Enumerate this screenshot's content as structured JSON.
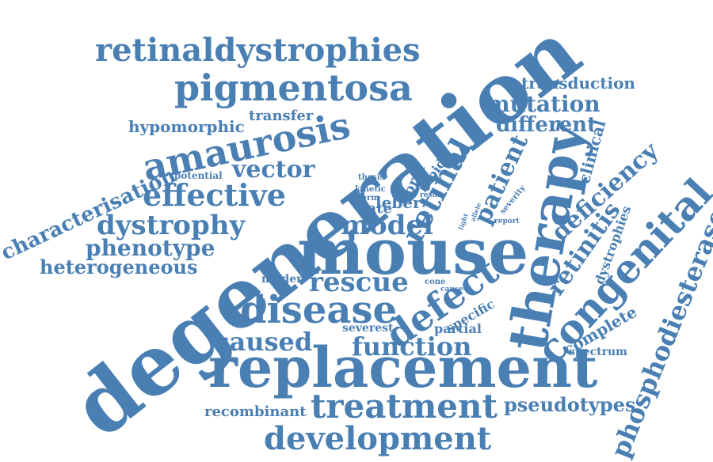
{
  "color": "#4a7fb3",
  "words": {
    "degeneration": "degeneration",
    "mouse": "mouse",
    "replacement": "replacement",
    "therapy": "therapy",
    "congenital": "congenital",
    "amaurosis": "amaurosis",
    "pigmentosa": "pigmentosa",
    "retinaldystrophies": "retinaldystrophies",
    "treatment": "treatment",
    "development": "development",
    "disease": "disease",
    "defect": "defect",
    "rescue": "rescue",
    "retinal": "retinal",
    "effective": "effective",
    "phosphodiesterase": "phosphodiesterase",
    "dystrophy": "dystrophy",
    "characterisation": "characterisation",
    "function": "function",
    "caused": "caused",
    "patient": "patient",
    "mutation": "mutation",
    "different": "different",
    "vector": "vector",
    "phenotype": "phenotype",
    "heterogeneous": "heterogeneous",
    "model": "model",
    "deficiency": "deficiency",
    "retinitis": "retinitis",
    "pseudotypes": "pseudotypes",
    "transduction": "transduction",
    "hypomorphic": "hypomorphic",
    "transfer": "transfer",
    "clinical": "clinical",
    "recombinant": "recombinant",
    "complete": "complete",
    "dystrophies": "dystrophies",
    "leber": "leber",
    "rate": "rate",
    "form": "form",
    "rapid": "rapid",
    "specific": "specific",
    "partial": "partial",
    "severest": "severest",
    "milder": "milder",
    "spectrum": "spectrum",
    "potential": "potential",
    "thesis": "thesis",
    "kinetic": "kinetic",
    "term": "term",
    "result": "result",
    "light": "light",
    "allele": "allele",
    "severity": "severity",
    "report": "report",
    "cone": "cone",
    "cause": "cause"
  }
}
